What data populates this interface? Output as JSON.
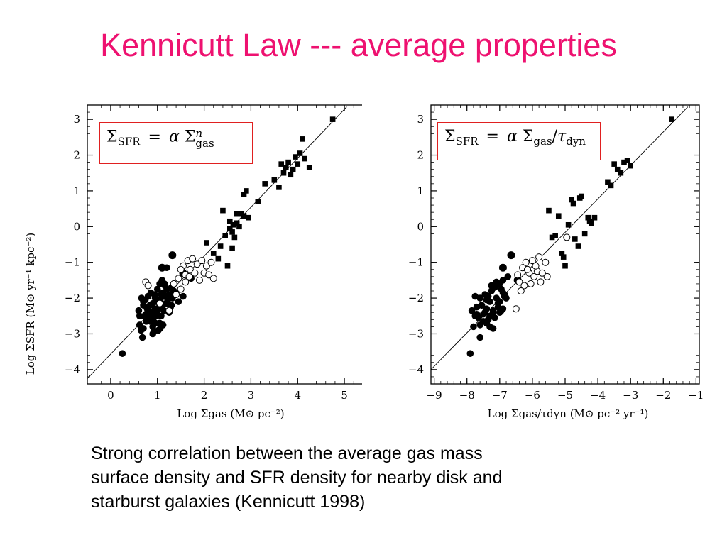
{
  "slide": {
    "title": "Kennicutt Law --- average properties",
    "caption_lines": [
      "Strong correlation between the average gas mass",
      "surface density and SFR density for nearby disk and",
      "starburst galaxies  (Kennicutt 1998)"
    ]
  },
  "colors": {
    "title": "#ee1170",
    "equation_border": "#e02020",
    "marker": "#000000"
  },
  "chart_data": [
    {
      "type": "scatter",
      "title": "",
      "equation": {
        "lhs": "Σ",
        "lhs_sub": "SFR",
        "eq": "=",
        "coef": "α",
        "rhs": "Σ",
        "rhs_sup": "n",
        "rhs_sub": "gas"
      },
      "xlabel": "Log Σgas  (M⊙ pc⁻²)",
      "ylabel": "Log ΣSFR  (M⊙ yr⁻¹ kpc⁻²)",
      "xlim": [
        -0.5,
        5.5
      ],
      "ylim": [
        -4.4,
        3.4
      ],
      "xticks": [
        0,
        1,
        2,
        3,
        4,
        5
      ],
      "xtick_labels": [
        "0",
        "1",
        "2",
        "3",
        "4",
        "5"
      ],
      "yticks": [
        -4,
        -3,
        -2,
        -1,
        0,
        1,
        2,
        3
      ],
      "ytick_labels": [
        "−4",
        "−3",
        "−2",
        "−1",
        "0",
        "1",
        "2",
        "3"
      ],
      "fit_line": {
        "x": [
          -0.5,
          5.05
        ],
        "y": [
          -4.25,
          3.35
        ]
      },
      "series": [
        {
          "marker": "filled-circle",
          "x": [
            0.25,
            0.6,
            0.62,
            0.65,
            0.68,
            0.7,
            0.72,
            0.74,
            0.76,
            0.78,
            0.8,
            0.82,
            0.84,
            0.85,
            0.86,
            0.88,
            0.9,
            0.92,
            0.94,
            0.95,
            0.96,
            0.98,
            1.0,
            1.0,
            1.02,
            1.04,
            1.05,
            1.06,
            1.08,
            1.1,
            1.1,
            1.12,
            1.14,
            1.15,
            1.16,
            1.18,
            1.2,
            1.22,
            1.25,
            1.28,
            1.3,
            1.32,
            0.7,
            0.75,
            0.8,
            0.88,
            0.92,
            1.06,
            1.12,
            1.35,
            1.55,
            1.72,
            0.66,
            0.8,
            0.95,
            1.1,
            1.25,
            1.45,
            0.7,
            0.85,
            0.9,
            1.0,
            1.15,
            0.9,
            0.98,
            1.08,
            1.3,
            1.4,
            0.62,
            1.05,
            1.2
          ],
          "y": [
            -3.55,
            -2.35,
            -2.75,
            -2.9,
            -3.1,
            -2.2,
            -2.5,
            -2.05,
            -2.65,
            -2.3,
            -1.95,
            -2.45,
            -2.2,
            -2.6,
            -1.85,
            -2.4,
            -2.15,
            -2.55,
            -1.9,
            -2.3,
            -2.7,
            -2.1,
            -2.45,
            -1.75,
            -2.9,
            -2.25,
            -1.6,
            -2.05,
            -2.5,
            -1.5,
            -2.2,
            -1.85,
            -2.35,
            -1.95,
            -1.65,
            -2.15,
            -1.75,
            -2.05,
            -1.9,
            -2.25,
            -1.7,
            -2.0,
            -2.85,
            -2.45,
            -2.3,
            -2.55,
            -2.95,
            -2.85,
            -2.75,
            -1.8,
            -1.95,
            -1.45,
            -2.0,
            -2.6,
            -2.0,
            -1.55,
            -2.4,
            -2.1,
            -2.1,
            -2.65,
            -3.0,
            -2.35,
            -1.6,
            -2.8,
            -2.5,
            -1.9,
            -2.2,
            -1.85,
            -2.5,
            -2.7,
            -1.15
          ],
          "x_extra": [],
          "y_extra": []
        },
        {
          "marker": "filled-circle-large",
          "x": [
            1.32,
            1.1,
            1.55
          ],
          "y": [
            -0.8,
            -1.15,
            -1.3
          ]
        },
        {
          "marker": "open-circle",
          "x": [
            0.75,
            0.8,
            1.05,
            1.25,
            1.35,
            1.45,
            1.5,
            1.55,
            1.6,
            1.65,
            1.7,
            1.75,
            1.8,
            1.85,
            1.9,
            1.95,
            2.0,
            2.05,
            2.1,
            2.15,
            2.2,
            1.4,
            1.5,
            1.6,
            1.68
          ],
          "y": [
            -1.55,
            -1.65,
            -2.15,
            -2.35,
            -1.6,
            -1.45,
            -1.75,
            -1.1,
            -1.35,
            -0.95,
            -1.2,
            -0.9,
            -1.3,
            -1.05,
            -1.5,
            -0.95,
            -1.3,
            -1.1,
            -1.35,
            -1.0,
            -1.45,
            -1.9,
            -1.2,
            -1.55,
            -1.4
          ]
        },
        {
          "marker": "filled-square",
          "x": [
            2.05,
            2.2,
            2.3,
            2.35,
            2.4,
            2.45,
            2.5,
            2.55,
            2.6,
            2.62,
            2.65,
            2.7,
            2.75,
            2.8,
            2.85,
            2.9,
            2.95,
            3.15,
            3.3,
            3.5,
            3.6,
            3.65,
            3.7,
            3.75,
            3.8,
            3.85,
            3.9,
            3.95,
            4.0,
            4.05,
            4.1,
            4.15,
            4.25,
            4.75,
            2.6,
            2.7,
            2.55,
            2.85
          ],
          "y": [
            -0.45,
            -0.75,
            -0.9,
            -0.55,
            0.45,
            -0.25,
            -1.1,
            0.15,
            -0.6,
            0.05,
            -0.3,
            0.35,
            0.0,
            0.35,
            0.9,
            1.0,
            0.25,
            0.7,
            1.2,
            1.3,
            1.1,
            1.75,
            1.5,
            1.65,
            1.8,
            1.45,
            1.6,
            1.95,
            1.75,
            2.05,
            2.45,
            1.9,
            1.65,
            3.0,
            -0.15,
            0.1,
            -0.05,
            0.3
          ]
        }
      ]
    },
    {
      "type": "scatter",
      "title": "",
      "equation": {
        "lhs": "Σ",
        "lhs_sub": "SFR",
        "eq": "=",
        "coef": "α",
        "rhs": "Σ",
        "rhs_sub": "gas",
        "div": "/",
        "tau": "τ",
        "tau_sub": "dyn"
      },
      "xlabel": "Log Σgas/τdyn   (M⊙ pc⁻² yr⁻¹)",
      "ylabel": "",
      "xlim": [
        -9.1,
        -0.9
      ],
      "ylim": [
        -4.4,
        3.4
      ],
      "xticks": [
        -9,
        -8,
        -7,
        -6,
        -5,
        -4,
        -3,
        -2,
        -1
      ],
      "xtick_labels": [
        "−9",
        "−8",
        "−7",
        "−6",
        "−5",
        "−4",
        "−3",
        "−2",
        "−1"
      ],
      "yticks": [
        -4,
        -3,
        -2,
        -1,
        0,
        1,
        2,
        3
      ],
      "ytick_labels": [
        "−4",
        "−3",
        "−2",
        "−1",
        "0",
        "1",
        "2",
        "3"
      ],
      "fit_line": {
        "x": [
          -9.1,
          -1.25
        ],
        "y": [
          -4.0,
          3.35
        ]
      },
      "series": [
        {
          "marker": "filled-circle",
          "x": [
            -7.9,
            -7.85,
            -7.8,
            -7.75,
            -7.7,
            -7.65,
            -7.6,
            -7.55,
            -7.5,
            -7.45,
            -7.4,
            -7.35,
            -7.3,
            -7.25,
            -7.2,
            -7.15,
            -7.1,
            -7.05,
            -7.0,
            -6.95,
            -6.9,
            -6.85,
            -6.8,
            -7.6,
            -7.5,
            -7.4,
            -7.3,
            -7.2,
            -7.1,
            -7.0,
            -6.9,
            -7.75,
            -7.55,
            -7.35,
            -7.15,
            -6.95,
            -7.45,
            -7.25,
            -7.05,
            -6.75,
            -6.9,
            -7.7,
            -7.6,
            -7.3,
            -7.0,
            -6.85,
            -7.4,
            -7.2
          ],
          "y": [
            -3.55,
            -2.35,
            -2.8,
            -1.95,
            -2.45,
            -2.55,
            -3.1,
            -2.2,
            -2.45,
            -1.9,
            -2.3,
            -2.6,
            -2.1,
            -1.8,
            -2.4,
            -1.7,
            -2.0,
            -2.25,
            -1.6,
            -2.35,
            -1.5,
            -1.9,
            -2.0,
            -2.75,
            -2.65,
            -2.05,
            -2.5,
            -2.85,
            -1.55,
            -2.1,
            -2.3,
            -2.5,
            -2.2,
            -1.95,
            -2.55,
            -1.75,
            -2.4,
            -1.65,
            -2.15,
            -1.4,
            -1.85,
            -2.25,
            -2.0,
            -2.8,
            -2.4,
            -1.95,
            -2.7,
            -2.35
          ],
          "x_extra": [],
          "y_extra": []
        },
        {
          "marker": "filled-circle-large",
          "x": [
            -6.65,
            -6.9,
            -6.45
          ],
          "y": [
            -0.8,
            -1.15,
            -1.5
          ]
        },
        {
          "marker": "open-circle",
          "x": [
            -6.5,
            -6.4,
            -6.3,
            -6.25,
            -6.2,
            -6.1,
            -6.0,
            -5.95,
            -5.85,
            -5.8,
            -5.75,
            -5.7,
            -5.6,
            -5.55,
            -6.35,
            -6.15,
            -6.05,
            -5.9,
            -4.95,
            -6.45
          ],
          "y": [
            -2.3,
            -1.55,
            -1.15,
            -1.65,
            -1.0,
            -1.3,
            -0.95,
            -1.4,
            -1.25,
            -0.85,
            -1.55,
            -1.3,
            -1.0,
            -1.4,
            -1.8,
            -1.2,
            -1.6,
            -1.1,
            -0.3,
            -1.35
          ],
          "x_extra": [],
          "y_extra": []
        },
        {
          "marker": "filled-square",
          "x": [
            -5.5,
            -5.4,
            -5.2,
            -5.1,
            -5.0,
            -4.9,
            -4.8,
            -4.75,
            -4.7,
            -4.6,
            -4.5,
            -4.4,
            -4.3,
            -4.2,
            -4.1,
            -3.7,
            -3.6,
            -3.5,
            -3.4,
            -3.3,
            -3.2,
            -3.1,
            -3.0,
            -1.75,
            -5.05,
            -4.55,
            -4.25,
            -5.3
          ],
          "y": [
            0.45,
            -0.3,
            0.3,
            -0.75,
            -1.1,
            0.05,
            0.75,
            0.65,
            -0.35,
            -0.55,
            0.85,
            -0.2,
            0.25,
            0.1,
            0.25,
            1.25,
            1.15,
            1.75,
            1.6,
            1.5,
            1.8,
            1.85,
            1.7,
            3.0,
            -0.85,
            0.8,
            0.15,
            -0.25
          ]
        }
      ]
    }
  ]
}
